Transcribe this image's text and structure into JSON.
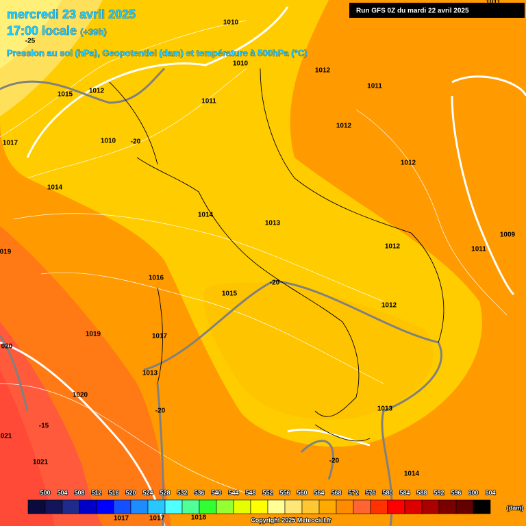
{
  "header": {
    "date": "mercredi 23 avril 2025",
    "time": "17:00 locale",
    "offset": "(+39h)",
    "subtitle": "Pression au sol (hPa), Geopotentiel (dam) et température à 500hPa (°C)",
    "run": "Run GFS 0Z du mardi 22 avril 2025"
  },
  "map_labels": [
    "1011",
    "1010",
    "-25",
    "1010",
    "1012",
    "1011",
    "1015",
    "1012",
    "1011",
    "1012",
    "1017",
    "1010",
    "-20",
    "1012",
    "1014",
    "1014",
    "1013",
    "1009",
    "019",
    "1012",
    "1011",
    "1016",
    "-20",
    "1015",
    "1012",
    "1019",
    "1017",
    "020",
    "1013",
    "1020",
    "1013",
    "-20",
    "-15",
    "021",
    "1021",
    "-20",
    "1014",
    "1017",
    "1017",
    "1018"
  ],
  "legend": {
    "scale": [
      500,
      504,
      508,
      512,
      516,
      520,
      524,
      528,
      532,
      536,
      540,
      544,
      548,
      552,
      556,
      560,
      564,
      568,
      572,
      576,
      580,
      584,
      588,
      592,
      596,
      600,
      604
    ],
    "colors": [
      "#0a0a3c",
      "#14145a",
      "#1e2a8c",
      "#0000c8",
      "#0000ff",
      "#1450ff",
      "#1e8cff",
      "#28c8ff",
      "#50ffff",
      "#50ff96",
      "#32ff32",
      "#96ff32",
      "#e6ff00",
      "#ffff00",
      "#ffff96",
      "#ffe678",
      "#ffc832",
      "#ffaa00",
      "#ff8c00",
      "#ff6432",
      "#ff3200",
      "#ff0000",
      "#dc0000",
      "#aa0000",
      "#7a0000",
      "#640000",
      "#000000"
    ],
    "unit": "(dam)"
  },
  "footer": {
    "copyright": "Copyright 2025 Meteociel.fr"
  }
}
